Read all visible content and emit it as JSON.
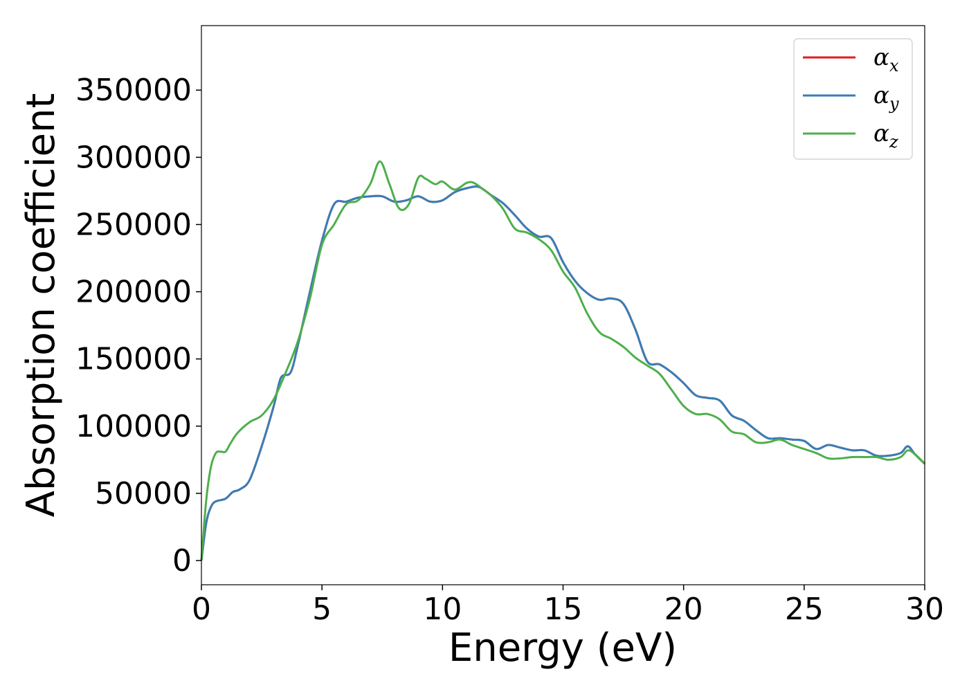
{
  "chart_data": {
    "type": "line",
    "title": "",
    "xlabel": "Energy (eV)",
    "ylabel": "Absorption coefficient",
    "xlim": [
      0,
      30
    ],
    "ylim": [
      -18000,
      398000
    ],
    "xticks": [
      0,
      5,
      10,
      15,
      20,
      25,
      30
    ],
    "yticks": [
      0,
      50000,
      100000,
      150000,
      200000,
      250000,
      300000,
      350000
    ],
    "grid": false,
    "legend_position": "top-right",
    "series": [
      {
        "name": "α_x",
        "legend_main": "α",
        "legend_sub": "x",
        "color": "#e41a1c",
        "x": [
          0,
          0.2,
          0.4,
          0.6,
          1.0,
          1.3,
          1.6,
          2.0,
          2.5,
          3.0,
          3.3,
          3.7,
          4.0,
          4.5,
          5.0,
          5.5,
          6.0,
          6.5,
          7.0,
          7.5,
          8.0,
          8.5,
          9.0,
          9.5,
          10.0,
          10.5,
          11.0,
          11.5,
          12.0,
          12.5,
          13.0,
          13.5,
          14.0,
          14.5,
          15.0,
          15.5,
          16.0,
          16.5,
          17.0,
          17.5,
          18.0,
          18.5,
          19.0,
          19.5,
          20.0,
          20.5,
          21.0,
          21.5,
          22.0,
          22.5,
          23.0,
          23.5,
          24.0,
          24.5,
          25.0,
          25.5,
          26.0,
          26.5,
          27.0,
          27.5,
          28.0,
          28.5,
          29.0,
          29.3,
          29.6,
          30.0
        ],
        "values": [
          0,
          28000,
          40000,
          44000,
          46000,
          51000,
          53000,
          60000,
          85000,
          115000,
          136000,
          140000,
          160000,
          200000,
          238000,
          265000,
          267000,
          270000,
          271000,
          271000,
          267000,
          268000,
          271000,
          267000,
          268000,
          274000,
          277000,
          278000,
          272000,
          266000,
          257000,
          247000,
          241000,
          240000,
          222000,
          208000,
          199000,
          194000,
          195000,
          191000,
          172000,
          148000,
          146000,
          140000,
          132000,
          123000,
          121000,
          119000,
          108000,
          104000,
          97000,
          91000,
          91000,
          90000,
          89000,
          83000,
          86000,
          84000,
          82000,
          82000,
          78000,
          78000,
          80000,
          85000,
          79000,
          72000
        ]
      },
      {
        "name": "α_y",
        "legend_main": "α",
        "legend_sub": "y",
        "color": "#377eb8",
        "x": [
          0,
          0.2,
          0.4,
          0.6,
          1.0,
          1.3,
          1.6,
          2.0,
          2.5,
          3.0,
          3.3,
          3.7,
          4.0,
          4.5,
          5.0,
          5.5,
          6.0,
          6.5,
          7.0,
          7.5,
          8.0,
          8.5,
          9.0,
          9.5,
          10.0,
          10.5,
          11.0,
          11.5,
          12.0,
          12.5,
          13.0,
          13.5,
          14.0,
          14.5,
          15.0,
          15.5,
          16.0,
          16.5,
          17.0,
          17.5,
          18.0,
          18.5,
          19.0,
          19.5,
          20.0,
          20.5,
          21.0,
          21.5,
          22.0,
          22.5,
          23.0,
          23.5,
          24.0,
          24.5,
          25.0,
          25.5,
          26.0,
          26.5,
          27.0,
          27.5,
          28.0,
          28.5,
          29.0,
          29.3,
          29.6,
          30.0
        ],
        "values": [
          0,
          28000,
          40000,
          44000,
          46000,
          51000,
          53000,
          60000,
          85000,
          115000,
          136000,
          140000,
          160000,
          200000,
          238000,
          265000,
          267000,
          270000,
          271000,
          271000,
          267000,
          268000,
          271000,
          267000,
          268000,
          274000,
          277000,
          278000,
          272000,
          266000,
          257000,
          247000,
          241000,
          240000,
          222000,
          208000,
          199000,
          194000,
          195000,
          191000,
          172000,
          148000,
          146000,
          140000,
          132000,
          123000,
          121000,
          119000,
          108000,
          104000,
          97000,
          91000,
          91000,
          90000,
          89000,
          83000,
          86000,
          84000,
          82000,
          82000,
          78000,
          78000,
          80000,
          85000,
          79000,
          72000
        ]
      },
      {
        "name": "α_z",
        "legend_main": "α",
        "legend_sub": "z",
        "color": "#4daf4a",
        "x": [
          0,
          0.2,
          0.4,
          0.6,
          0.8,
          1.0,
          1.2,
          1.5,
          2.0,
          2.5,
          3.0,
          3.5,
          4.0,
          4.5,
          5.0,
          5.5,
          6.0,
          6.5,
          7.0,
          7.4,
          7.8,
          8.2,
          8.6,
          9.0,
          9.3,
          9.7,
          10.0,
          10.5,
          11.0,
          11.3,
          11.7,
          12.0,
          12.5,
          13.0,
          13.5,
          14.0,
          14.5,
          15.0,
          15.5,
          16.0,
          16.5,
          17.0,
          17.5,
          18.0,
          18.5,
          19.0,
          19.5,
          20.0,
          20.5,
          21.0,
          21.5,
          22.0,
          22.5,
          23.0,
          23.5,
          24.0,
          24.5,
          25.0,
          25.5,
          26.0,
          26.5,
          27.0,
          27.5,
          28.0,
          28.5,
          29.0,
          29.3,
          29.6,
          30.0
        ],
        "values": [
          0,
          45000,
          70000,
          80000,
          81000,
          81000,
          87000,
          95000,
          103000,
          108000,
          120000,
          140000,
          163000,
          195000,
          235000,
          250000,
          265000,
          268000,
          280000,
          297000,
          280000,
          262000,
          265000,
          285000,
          284000,
          280000,
          282000,
          276000,
          281000,
          281000,
          276000,
          272000,
          262000,
          247000,
          244000,
          239000,
          231000,
          215000,
          203000,
          184000,
          170000,
          165000,
          159000,
          151000,
          145000,
          139000,
          127000,
          115000,
          109000,
          109000,
          105000,
          96000,
          94000,
          88000,
          88000,
          90000,
          86000,
          83000,
          80000,
          76000,
          76000,
          77000,
          77000,
          77000,
          75000,
          77000,
          82000,
          79000,
          72000
        ]
      }
    ]
  }
}
